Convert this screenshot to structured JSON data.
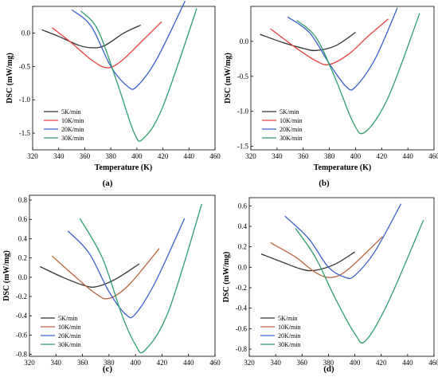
{
  "chart_data": [
    {
      "type": "line",
      "panel_label": "(a)",
      "xlabel": "Temperature (K)",
      "ylabel": "DSC (mW/mg)",
      "xlim": [
        320,
        460
      ],
      "ylim": [
        -1.75,
        0.4
      ],
      "xticks": [
        320,
        340,
        360,
        380,
        400,
        420,
        440,
        460
      ],
      "yticks": [
        -1.5,
        -1.0,
        -0.5,
        0.0
      ],
      "ytick_labels": [
        "-1.5",
        "-1.0",
        "-0.5",
        "0.0"
      ],
      "legend_position": "bottom-left",
      "series": [
        {
          "name": "5K/min",
          "color": "#333333",
          "points": [
            [
              327,
              0.05
            ],
            [
              340,
              -0.05
            ],
            [
              355,
              -0.18
            ],
            [
              365,
              -0.22
            ],
            [
              375,
              -0.19
            ],
            [
              390,
              0.0
            ],
            [
              403,
              0.12
            ]
          ]
        },
        {
          "name": "10K/min",
          "color": "#e8403c",
          "points": [
            [
              335,
              0.08
            ],
            [
              350,
              -0.15
            ],
            [
              365,
              -0.4
            ],
            [
              377,
              -0.52
            ],
            [
              388,
              -0.42
            ],
            [
              405,
              -0.1
            ],
            [
              419,
              0.17
            ]
          ]
        },
        {
          "name": "20K/min",
          "color": "#3a5fcd",
          "points": [
            [
              350,
              0.35
            ],
            [
              365,
              0.1
            ],
            [
              380,
              -0.5
            ],
            [
              393,
              -0.8
            ],
            [
              400,
              -0.8
            ],
            [
              415,
              -0.4
            ],
            [
              437,
              0.48
            ]
          ]
        },
        {
          "name": "30K/min",
          "color": "#2e9e6b",
          "points": [
            [
              357,
              0.33
            ],
            [
              370,
              0.05
            ],
            [
              385,
              -0.75
            ],
            [
              398,
              -1.5
            ],
            [
              405,
              -1.58
            ],
            [
              420,
              -1.1
            ],
            [
              446,
              0.37
            ]
          ]
        }
      ]
    },
    {
      "type": "line",
      "panel_label": "(b)",
      "xlabel": "Temperature (K)",
      "ylabel": "DSC (mW/mg)",
      "xlim": [
        320,
        460
      ],
      "ylim": [
        -1.55,
        0.5
      ],
      "xticks": [
        320,
        340,
        360,
        380,
        400,
        420,
        440,
        460
      ],
      "yticks": [
        -1.5,
        -1.0,
        -0.5,
        0.0
      ],
      "ytick_labels": [
        "-1.5",
        "-1.0",
        "-0.5",
        "0.0"
      ],
      "legend_position": "bottom-left",
      "series": [
        {
          "name": "5K/min",
          "color": "#333333",
          "points": [
            [
              327,
              0.1
            ],
            [
              345,
              -0.02
            ],
            [
              360,
              -0.1
            ],
            [
              370,
              -0.13
            ],
            [
              385,
              -0.06
            ],
            [
              400,
              0.13
            ]
          ]
        },
        {
          "name": "10K/min",
          "color": "#e8403c",
          "points": [
            [
              335,
              0.18
            ],
            [
              355,
              -0.1
            ],
            [
              370,
              -0.28
            ],
            [
              380,
              -0.33
            ],
            [
              395,
              -0.18
            ],
            [
              410,
              0.08
            ],
            [
              425,
              0.32
            ]
          ]
        },
        {
          "name": "20K/min",
          "color": "#3a5fcd",
          "points": [
            [
              348,
              0.35
            ],
            [
              365,
              0.12
            ],
            [
              380,
              -0.32
            ],
            [
              393,
              -0.65
            ],
            [
              400,
              -0.65
            ],
            [
              415,
              -0.25
            ],
            [
              432,
              0.48
            ]
          ]
        },
        {
          "name": "30K/min",
          "color": "#2e9e6b",
          "points": [
            [
              355,
              0.3
            ],
            [
              370,
              0.05
            ],
            [
              385,
              -0.55
            ],
            [
              398,
              -1.15
            ],
            [
              407,
              -1.3
            ],
            [
              425,
              -0.8
            ],
            [
              449,
              0.4
            ]
          ]
        }
      ]
    },
    {
      "type": "line",
      "panel_label": "(c)",
      "xlabel": "Temperature (K)",
      "ylabel": "DSC (mW/mg)",
      "xlim": [
        320,
        460
      ],
      "ylim": [
        -0.82,
        0.85
      ],
      "xticks": [
        320,
        340,
        360,
        380,
        400,
        420,
        440,
        460
      ],
      "yticks": [
        -0.8,
        -0.6,
        -0.4,
        -0.2,
        0.0,
        0.2,
        0.4,
        0.6,
        0.8
      ],
      "ytick_labels": [
        "-0.8",
        "-0.6",
        "-0.4",
        "-0.2",
        "0.0",
        "0.2",
        "0.4",
        "0.6",
        "0.8"
      ],
      "legend_position": "bottom-left",
      "series": [
        {
          "name": "5K/min",
          "color": "#333333",
          "points": [
            [
              328,
              0.11
            ],
            [
              345,
              0.0
            ],
            [
              360,
              -0.08
            ],
            [
              370,
              -0.1
            ],
            [
              385,
              -0.02
            ],
            [
              403,
              0.14
            ]
          ]
        },
        {
          "name": "10K/min",
          "color": "#b8643a",
          "points": [
            [
              337,
              0.22
            ],
            [
              355,
              0.0
            ],
            [
              370,
              -0.17
            ],
            [
              380,
              -0.22
            ],
            [
              395,
              -0.08
            ],
            [
              418,
              0.3
            ]
          ]
        },
        {
          "name": "20K/min",
          "color": "#3a5fcd",
          "points": [
            [
              349,
              0.48
            ],
            [
              365,
              0.25
            ],
            [
              380,
              -0.15
            ],
            [
              393,
              -0.39
            ],
            [
              400,
              -0.38
            ],
            [
              415,
              -0.05
            ],
            [
              437,
              0.61
            ]
          ]
        },
        {
          "name": "30K/min",
          "color": "#2e9e6b",
          "points": [
            [
              358,
              0.61
            ],
            [
              375,
              0.2
            ],
            [
              390,
              -0.4
            ],
            [
              400,
              -0.7
            ],
            [
              407,
              -0.76
            ],
            [
              425,
              -0.35
            ],
            [
              450,
              0.76
            ]
          ]
        }
      ]
    },
    {
      "type": "line",
      "panel_label": "(d)",
      "xlabel": "Temperature (K)",
      "ylabel": "DSC (mW/mg)",
      "xlim": [
        320,
        460
      ],
      "ylim": [
        -0.87,
        0.68
      ],
      "xticks": [
        320,
        340,
        360,
        380,
        400,
        420,
        440,
        460
      ],
      "yticks": [
        -0.8,
        -0.6,
        -0.4,
        -0.2,
        0.0,
        0.2,
        0.4,
        0.6
      ],
      "ytick_labels": [
        "-0.8",
        "-0.6",
        "-0.4",
        "-0.2",
        "0.0",
        "0.2",
        "0.4",
        "0.6"
      ],
      "legend_position": "bottom-left",
      "series": [
        {
          "name": "5K/min",
          "color": "#333333",
          "points": [
            [
              329,
              0.13
            ],
            [
              345,
              0.05
            ],
            [
              360,
              -0.02
            ],
            [
              370,
              -0.03
            ],
            [
              385,
              0.03
            ],
            [
              400,
              0.15
            ]
          ]
        },
        {
          "name": "10K/min",
          "color": "#b8643a",
          "points": [
            [
              336,
              0.24
            ],
            [
              355,
              0.1
            ],
            [
              370,
              -0.05
            ],
            [
              382,
              -0.1
            ],
            [
              395,
              -0.02
            ],
            [
              421,
              0.3
            ]
          ]
        },
        {
          "name": "20K/min",
          "color": "#3a5fcd",
          "points": [
            [
              347,
              0.5
            ],
            [
              365,
              0.28
            ],
            [
              380,
              0.0
            ],
            [
              393,
              -0.1
            ],
            [
              400,
              -0.08
            ],
            [
              415,
              0.15
            ],
            [
              435,
              0.62
            ]
          ]
        },
        {
          "name": "30K/min",
          "color": "#2e9e6b",
          "points": [
            [
              355,
              0.38
            ],
            [
              370,
              0.1
            ],
            [
              385,
              -0.3
            ],
            [
              400,
              -0.65
            ],
            [
              408,
              -0.72
            ],
            [
              425,
              -0.35
            ],
            [
              452,
              0.46
            ]
          ]
        }
      ]
    }
  ]
}
